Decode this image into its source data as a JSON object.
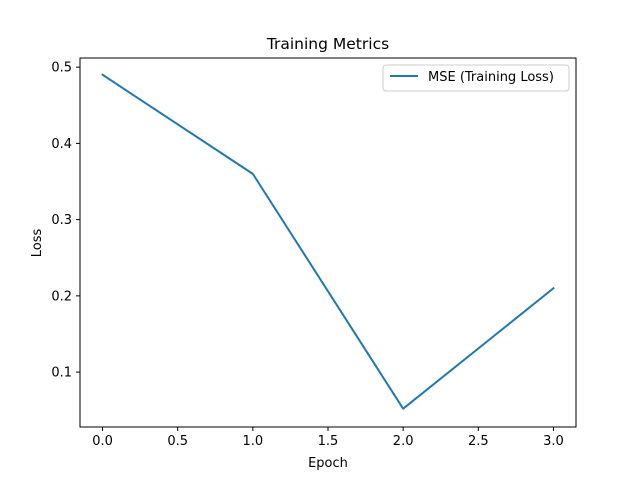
{
  "chart_data": {
    "type": "line",
    "title": "Training Metrics",
    "xlabel": "Epoch",
    "ylabel": "Loss",
    "xlim": [
      -0.15,
      3.15
    ],
    "ylim": [
      0.028,
      0.512
    ],
    "xticks": [
      0.0,
      0.5,
      1.0,
      1.5,
      2.0,
      2.5,
      3.0
    ],
    "xtick_labels": [
      "0.0",
      "0.5",
      "1.0",
      "1.5",
      "2.0",
      "2.5",
      "3.0"
    ],
    "yticks": [
      0.1,
      0.2,
      0.3,
      0.4,
      0.5
    ],
    "ytick_labels": [
      "0.1",
      "0.2",
      "0.3",
      "0.4",
      "0.5"
    ],
    "grid": false,
    "legend_position": "top-right",
    "series": [
      {
        "name": "MSE (Training Loss)",
        "color": "#1f77b4",
        "x": [
          0,
          1,
          2,
          3
        ],
        "y": [
          0.49,
          0.36,
          0.052,
          0.21
        ]
      }
    ]
  }
}
